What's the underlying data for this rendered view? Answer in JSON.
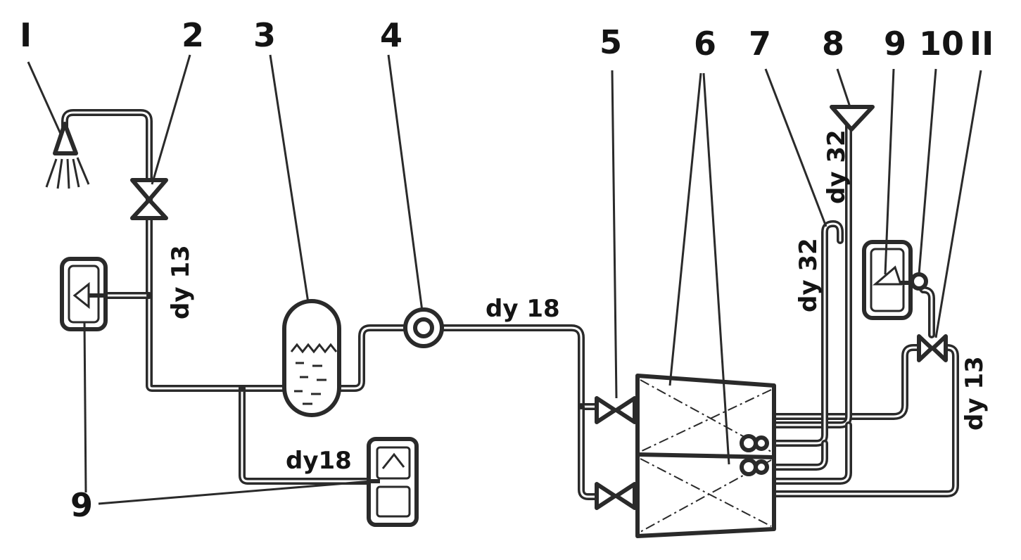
{
  "labels": {
    "n1": "I",
    "n2": "2",
    "n3": "3",
    "n4": "4",
    "n5": "5",
    "n6": "6",
    "n7": "7",
    "n8": "8",
    "n9_top": "9",
    "n10": "10",
    "n11": "II",
    "n9_bottom": "9"
  },
  "pipe_labels": {
    "left_riser": "dy 13",
    "main_line": "dy 18",
    "branch_line": "dy18",
    "drain_riser": "dy 32",
    "vent_riser": "dy 32",
    "right_riser": "dy 13"
  },
  "colors": {
    "ink": "#2a2a2a",
    "paper": "#ffffff"
  }
}
